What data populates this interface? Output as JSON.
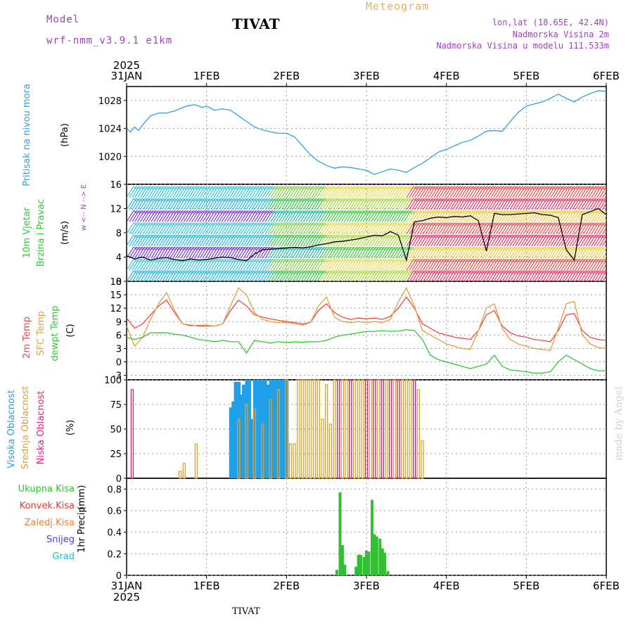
{
  "header": {
    "model_label": "Model",
    "model_name": "wrf-nmm_v3.9.1  e1km",
    "station": "TIVAT",
    "meteogram_label": "Meteogram",
    "lonlat": "lon,lat (18.65E, 42.4N)",
    "altitude": "Nadmorska Visina 2m",
    "model_altitude": "Nadmorska Visina u modelu 111.533m",
    "credit": "made by Angel"
  },
  "time_axis": {
    "year": "2025",
    "labels": [
      "31JAN",
      "1FEB",
      "2FEB",
      "3FEB",
      "4FEB",
      "5FEB",
      "6FEB"
    ]
  },
  "colors": {
    "pressure": "#30a0e0",
    "temp2m": "#f04848",
    "sfc_temp": "#e0a040",
    "dewpt": "#30c830",
    "high_cloud": "#20a0e8",
    "mid_cloud": "#e0a030",
    "low_cloud": "#e02080",
    "precip_total": "#30c030",
    "convective": "#f03030",
    "freezing": "#f08030",
    "snow": "#4040e0",
    "hail": "#20c0c0"
  },
  "chart_data": [
    {
      "type": "line",
      "panel": "pressure",
      "ylabel": "Pritisak na nivou mora",
      "unit": "(hPa)",
      "ylim": [
        1016,
        1030
      ],
      "yticks": [
        1020,
        1024,
        1028
      ],
      "x": [
        0,
        0.05,
        0.1,
        0.15,
        0.2,
        0.3,
        0.4,
        0.5,
        0.6,
        0.75,
        0.85,
        0.95,
        1.0,
        1.1,
        1.2,
        1.3,
        1.4,
        1.5,
        1.6,
        1.7,
        1.8,
        1.9,
        2.0,
        2.1,
        2.2,
        2.3,
        2.4,
        2.5,
        2.6,
        2.7,
        2.8,
        2.9,
        3.0,
        3.1,
        3.2,
        3.3,
        3.4,
        3.5,
        3.6,
        3.7,
        3.8,
        3.9,
        4.0,
        4.1,
        4.2,
        4.3,
        4.4,
        4.5,
        4.6,
        4.7,
        4.8,
        4.9,
        5.0,
        5.1,
        5.2,
        5.3,
        5.4,
        5.5,
        5.6,
        5.7,
        5.8,
        5.9,
        6.0
      ],
      "y": [
        1024.0,
        1023.5,
        1024.2,
        1023.7,
        1024.5,
        1025.8,
        1026.2,
        1026.2,
        1026.5,
        1027.2,
        1027.4,
        1027.0,
        1027.2,
        1026.6,
        1026.8,
        1026.6,
        1025.8,
        1025.0,
        1024.2,
        1023.8,
        1023.5,
        1023.3,
        1023.3,
        1022.8,
        1021.5,
        1020.2,
        1019.3,
        1018.7,
        1018.3,
        1018.5,
        1018.4,
        1018.2,
        1018.0,
        1017.4,
        1017.8,
        1018.2,
        1018.0,
        1017.7,
        1018.4,
        1019.0,
        1019.8,
        1020.6,
        1021.0,
        1021.5,
        1022.0,
        1022.3,
        1022.9,
        1023.6,
        1023.7,
        1023.6,
        1025.0,
        1026.3,
        1027.2,
        1027.5,
        1027.8,
        1028.3,
        1028.9,
        1028.3,
        1027.8,
        1028.5,
        1029.0,
        1029.4,
        1029.3
      ]
    },
    {
      "type": "line",
      "panel": "wind",
      "ylabel": "10m Vjetar Brzina i Pravac",
      "unit": "(m/s)",
      "compass": "w <-- N --> E",
      "ylim": [
        0,
        16
      ],
      "yticks": [
        0,
        4,
        8,
        12,
        16
      ],
      "x": [
        0,
        0.1,
        0.2,
        0.3,
        0.4,
        0.5,
        0.6,
        0.7,
        0.8,
        0.9,
        1.0,
        1.1,
        1.2,
        1.3,
        1.4,
        1.5,
        1.6,
        1.7,
        1.8,
        1.9,
        2.0,
        2.1,
        2.2,
        2.3,
        2.4,
        2.5,
        2.6,
        2.7,
        2.8,
        2.9,
        3.0,
        3.1,
        3.2,
        3.3,
        3.4,
        3.5,
        3.6,
        3.7,
        3.8,
        3.9,
        4.0,
        4.1,
        4.2,
        4.3,
        4.4,
        4.5,
        4.6,
        4.7,
        4.8,
        4.9,
        5.0,
        5.1,
        5.2,
        5.3,
        5.4,
        5.5,
        5.6,
        5.7,
        5.8,
        5.9,
        6.0
      ],
      "y": [
        4.2,
        3.7,
        4.0,
        3.5,
        3.8,
        3.9,
        3.6,
        3.4,
        3.7,
        3.5,
        3.6,
        3.8,
        4.0,
        3.9,
        3.6,
        3.4,
        4.5,
        5.2,
        5.3,
        5.4,
        5.5,
        5.6,
        5.5,
        5.7,
        6.0,
        6.2,
        6.5,
        6.6,
        6.8,
        7.0,
        7.3,
        7.6,
        7.5,
        8.2,
        7.6,
        3.5,
        9.8,
        10.0,
        10.4,
        10.6,
        10.5,
        10.7,
        10.6,
        10.8,
        10.0,
        5.0,
        11.2,
        11.0,
        11.0,
        11.1,
        11.2,
        11.3,
        11.0,
        10.9,
        10.5,
        5.2,
        3.5,
        11.0,
        11.5,
        12.0,
        11.0
      ]
    },
    {
      "type": "line",
      "panel": "temperature",
      "ylabel": "2m Temp",
      "ylabel2": "SFC Temp",
      "ylabel3": "dewpt Temp",
      "unit": "(C)",
      "ylim": [
        -4,
        18
      ],
      "yticks": [
        -3,
        0,
        3,
        6,
        9,
        12,
        15,
        18
      ],
      "x": [
        0,
        0.1,
        0.2,
        0.3,
        0.4,
        0.5,
        0.6,
        0.7,
        0.8,
        0.9,
        1.0,
        1.1,
        1.2,
        1.3,
        1.4,
        1.5,
        1.6,
        1.7,
        1.8,
        1.9,
        2.0,
        2.1,
        2.2,
        2.3,
        2.4,
        2.5,
        2.6,
        2.7,
        2.8,
        2.9,
        3.0,
        3.1,
        3.2,
        3.3,
        3.4,
        3.5,
        3.6,
        3.7,
        3.8,
        3.9,
        4.0,
        4.1,
        4.2,
        4.3,
        4.4,
        4.5,
        4.6,
        4.7,
        4.8,
        4.9,
        5.0,
        5.1,
        5.2,
        5.3,
        5.4,
        5.5,
        5.6,
        5.7,
        5.8,
        5.9,
        6.0
      ],
      "series": [
        {
          "name": "2m Temp",
          "values": [
            9.8,
            7.5,
            8.5,
            10.5,
            12.5,
            13.8,
            11.0,
            8.5,
            8.2,
            8.0,
            8.0,
            8.0,
            8.5,
            11.5,
            13.8,
            12.5,
            10.5,
            10.0,
            9.6,
            9.3,
            9.0,
            8.8,
            8.5,
            8.8,
            11.5,
            13.0,
            11.0,
            10.0,
            9.5,
            9.8,
            9.6,
            9.8,
            9.5,
            10.2,
            12.0,
            14.5,
            12.0,
            8.5,
            7.5,
            6.5,
            6.0,
            5.5,
            5.3,
            5.0,
            7.0,
            10.5,
            11.5,
            8.0,
            6.5,
            5.8,
            5.5,
            5.0,
            4.8,
            4.5,
            7.0,
            10.5,
            10.8,
            7.0,
            5.5,
            5.0,
            4.8
          ]
        },
        {
          "name": "SFC Temp",
          "values": [
            8.0,
            3.5,
            5.5,
            9.5,
            13.0,
            15.5,
            11.5,
            8.5,
            8.0,
            8.2,
            8.2,
            8.0,
            8.5,
            12.5,
            16.5,
            15.0,
            11.0,
            9.5,
            9.0,
            8.8,
            8.8,
            8.5,
            8.2,
            8.8,
            12.5,
            14.5,
            10.0,
            9.0,
            8.8,
            9.0,
            8.8,
            9.0,
            8.8,
            9.5,
            13.5,
            16.5,
            12.5,
            7.0,
            6.0,
            5.0,
            4.0,
            3.5,
            3.0,
            2.8,
            7.0,
            12.0,
            13.0,
            7.5,
            5.0,
            4.0,
            3.5,
            3.0,
            2.8,
            2.5,
            7.5,
            13.0,
            13.5,
            6.0,
            4.0,
            3.2,
            3.0
          ]
        },
        {
          "name": "dewpt Temp",
          "values": [
            5.5,
            5.0,
            5.5,
            6.5,
            6.5,
            6.5,
            6.2,
            6.0,
            5.5,
            5.0,
            4.8,
            4.5,
            4.8,
            4.5,
            4.5,
            2.0,
            4.8,
            4.5,
            4.2,
            4.5,
            4.3,
            4.5,
            4.4,
            4.5,
            4.5,
            4.8,
            5.5,
            6.0,
            6.2,
            6.5,
            6.8,
            6.8,
            7.0,
            6.8,
            6.9,
            7.2,
            7.0,
            5.0,
            1.5,
            0.5,
            0.0,
            -0.5,
            -1.0,
            -1.5,
            -1.0,
            -0.5,
            1.5,
            -1.0,
            -1.8,
            -2.0,
            -2.2,
            -2.5,
            -2.5,
            -2.2,
            0.0,
            1.5,
            0.5,
            -0.5,
            -1.5,
            -2.0,
            -2.0
          ]
        }
      ]
    },
    {
      "type": "bar",
      "panel": "cloud",
      "ylabel": "Visoka Oblacnost",
      "ylabel2": "Srednja Oblacnost",
      "ylabel3": "Niska Oblacnost",
      "unit": "(%)",
      "ylim": [
        0,
        100
      ],
      "yticks": [
        0,
        25,
        50,
        75,
        100
      ],
      "series": [
        {
          "name": "Visoka Oblacnost",
          "x": [
            1.3,
            1.33,
            1.36,
            1.4,
            1.43,
            1.46,
            1.5,
            1.53,
            1.56,
            1.6,
            1.63,
            1.66,
            1.7,
            1.73,
            1.76,
            1.8,
            1.83,
            1.86,
            1.9,
            1.93,
            1.96,
            2.0
          ],
          "values": [
            72,
            78,
            98,
            98,
            85,
            95,
            100,
            100,
            60,
            100,
            100,
            100,
            100,
            100,
            95,
            100,
            100,
            100,
            100,
            100,
            100,
            100
          ]
        },
        {
          "name": "Srednja Oblacnost",
          "x": [
            0.67,
            0.72,
            0.87,
            1.4,
            1.5,
            1.6,
            1.7,
            1.8,
            1.9,
            2.0,
            2.05,
            2.1,
            2.15,
            2.2,
            2.25,
            2.3,
            2.35,
            2.4,
            2.45,
            2.5,
            2.55,
            2.6,
            2.65,
            2.7,
            2.75,
            2.8,
            2.85,
            2.9,
            2.95,
            3.0,
            3.05,
            3.1,
            3.15,
            3.2,
            3.25,
            3.3,
            3.35,
            3.4,
            3.45,
            3.5,
            3.55,
            3.6,
            3.65,
            3.7
          ],
          "values": [
            7,
            15,
            35,
            60,
            75,
            70,
            55,
            80,
            90,
            100,
            35,
            35,
            100,
            100,
            100,
            100,
            100,
            100,
            60,
            95,
            55,
            100,
            100,
            100,
            100,
            100,
            100,
            100,
            100,
            100,
            100,
            100,
            100,
            100,
            100,
            100,
            100,
            100,
            100,
            100,
            100,
            100,
            90,
            38
          ]
        },
        {
          "name": "Niska Oblacnost",
          "x": [
            0.07,
            2.65,
            2.8,
            3.0,
            3.1,
            3.2,
            3.3,
            3.4,
            3.6
          ],
          "values": [
            90,
            100,
            100,
            100,
            100,
            100,
            100,
            100,
            100
          ]
        }
      ]
    },
    {
      "type": "bar",
      "panel": "precip",
      "ylabel": "1hr Precip",
      "unit": "(mm)",
      "legend": [
        "Ukupna Kisa",
        "Konvek.Kisa",
        "Zaledj.Kisa",
        "Snijeg",
        "Grad"
      ],
      "ylim": [
        0,
        0.9
      ],
      "yticks": [
        0,
        0.2,
        0.4,
        0.6,
        0.8
      ],
      "series": [
        {
          "name": "Ukupna Kisa",
          "x": [
            2.63,
            2.67,
            2.7,
            2.73,
            2.87,
            2.9,
            2.93,
            2.97,
            3.0,
            3.03,
            3.07,
            3.1,
            3.13,
            3.17,
            3.2,
            3.23,
            3.27
          ],
          "values": [
            0.05,
            0.77,
            0.28,
            0.1,
            0.08,
            0.19,
            0.19,
            0.17,
            0.23,
            0.22,
            0.7,
            0.38,
            0.36,
            0.34,
            0.25,
            0.21,
            0.04
          ]
        }
      ]
    }
  ]
}
